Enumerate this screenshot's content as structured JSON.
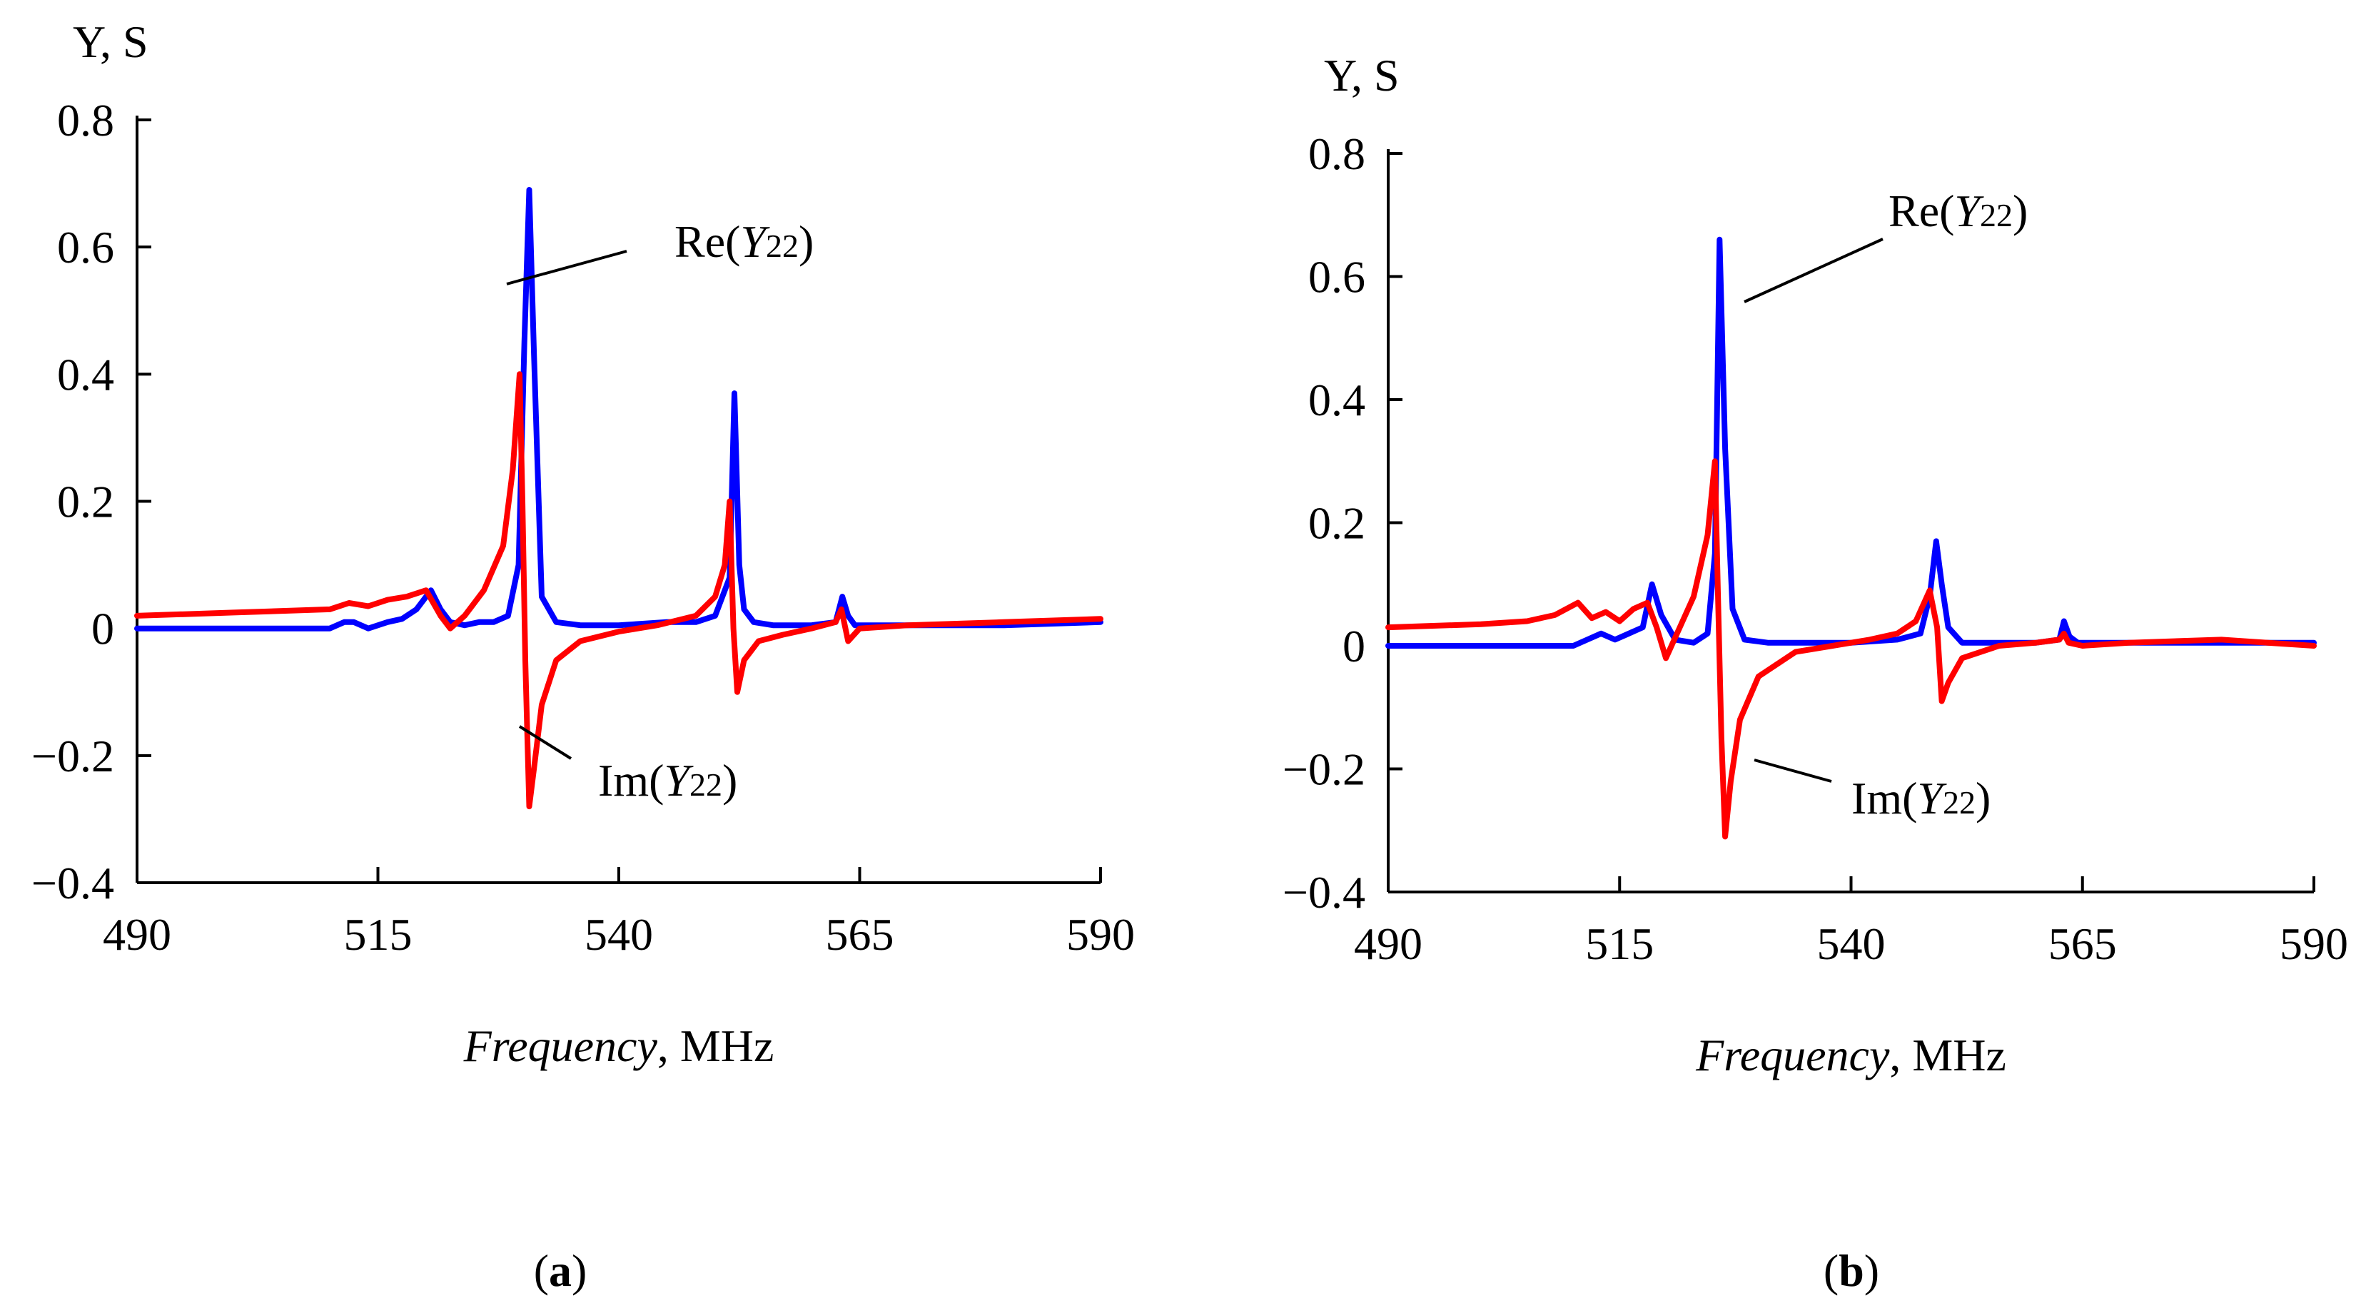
{
  "figure": {
    "panel_labels": [
      "a",
      "b"
    ]
  },
  "chart_data": [
    {
      "type": "line",
      "panel": "a",
      "title": "",
      "ylabel": "Y, S",
      "xlabel_italic": "Frequency",
      "xlabel_unit": ", MHz",
      "xlim": [
        490,
        590
      ],
      "ylim": [
        -0.4,
        0.8
      ],
      "xticks": [
        490,
        515,
        540,
        565,
        590
      ],
      "xtick_labels": [
        "490",
        "515",
        "540",
        "565",
        "590"
      ],
      "yticks": [
        0.8,
        0.6,
        0.4,
        0.2,
        0,
        -0.2,
        -0.4
      ],
      "ytick_labels": [
        "0.8",
        "0.6",
        "0.4",
        "0.2",
        "0",
        "−0.2",
        "−0.4"
      ],
      "grid": false,
      "series": [
        {
          "name": "Re(Y22)",
          "label_main": "Re(",
          "label_symbol": "Y",
          "label_sub": "22",
          "label_close": ")",
          "color": "#0000ff",
          "x": [
            490,
            500,
            510,
            511.5,
            512.5,
            514,
            516,
            517.5,
            519,
            520.5,
            521.5,
            522.5,
            524,
            525.5,
            527,
            528.5,
            529.6,
            530.2,
            530.7,
            531.2,
            532,
            533.5,
            536,
            540,
            545,
            548,
            550,
            551.5,
            552,
            552.5,
            553,
            554,
            556,
            560,
            562.5,
            563.2,
            563.8,
            564.5,
            566,
            570,
            580,
            590
          ],
          "y": [
            0.0,
            0.0,
            0.0,
            0.01,
            0.01,
            0.0,
            0.01,
            0.015,
            0.03,
            0.06,
            0.03,
            0.01,
            0.005,
            0.01,
            0.01,
            0.02,
            0.1,
            0.45,
            0.69,
            0.43,
            0.05,
            0.01,
            0.005,
            0.005,
            0.01,
            0.01,
            0.02,
            0.08,
            0.37,
            0.1,
            0.03,
            0.01,
            0.005,
            0.005,
            0.01,
            0.05,
            0.02,
            0.005,
            0.005,
            0.005,
            0.005,
            0.01
          ]
        },
        {
          "name": "Im(Y22)",
          "label_main": "Im(",
          "label_symbol": "Y",
          "label_sub": "22",
          "label_close": ")",
          "color": "#ff0000",
          "x": [
            490,
            500,
            510,
            512,
            514,
            516,
            518,
            520,
            521.5,
            522.5,
            524,
            526,
            528,
            529,
            529.7,
            530,
            530.3,
            530.7,
            531.2,
            532,
            533.5,
            536,
            540,
            544,
            548,
            550,
            551,
            551.5,
            551.9,
            552.3,
            553,
            554.5,
            557,
            560,
            562.5,
            563.1,
            563.8,
            565,
            570,
            580,
            590
          ],
          "y": [
            0.02,
            0.025,
            0.03,
            0.04,
            0.035,
            0.045,
            0.05,
            0.06,
            0.02,
            0.0,
            0.02,
            0.06,
            0.13,
            0.25,
            0.4,
            0.2,
            -0.05,
            -0.28,
            -0.22,
            -0.12,
            -0.05,
            -0.02,
            -0.005,
            0.005,
            0.02,
            0.05,
            0.1,
            0.2,
            0.0,
            -0.1,
            -0.05,
            -0.02,
            -0.01,
            0.0,
            0.01,
            0.03,
            -0.02,
            0.0,
            0.005,
            0.01,
            0.015
          ]
        }
      ],
      "annotations": [
        {
          "series": "Re(Y22)",
          "text": "Re(Y22)"
        },
        {
          "series": "Im(Y22)",
          "text": "Im(Y22)"
        }
      ]
    },
    {
      "type": "line",
      "panel": "b",
      "title": "",
      "ylabel": "Y, S",
      "xlabel_italic": "Frequency",
      "xlabel_unit": ", MHz",
      "xlim": [
        490,
        590
      ],
      "ylim": [
        -0.4,
        0.8
      ],
      "xticks": [
        490,
        515,
        540,
        565,
        590
      ],
      "xtick_labels": [
        "490",
        "515",
        "540",
        "565",
        "590"
      ],
      "yticks": [
        0.8,
        0.6,
        0.4,
        0.2,
        0,
        -0.2,
        -0.4
      ],
      "ytick_labels": [
        "0.8",
        "0.6",
        "0.4",
        "0.2",
        "0",
        "−0.2",
        "−0.4"
      ],
      "grid": false,
      "series": [
        {
          "name": "Re(Y22)",
          "label_main": "Re(",
          "label_symbol": "Y",
          "label_sub": "22",
          "label_close": ")",
          "color": "#0000ff",
          "x": [
            490,
            500,
            510,
            511.5,
            513,
            514.5,
            516,
            517.5,
            518.5,
            519.5,
            521,
            523,
            524.5,
            525.3,
            525.8,
            526.4,
            527.2,
            528.5,
            531,
            535,
            540,
            545,
            547.5,
            548.5,
            549.2,
            549.8,
            550.5,
            552,
            556,
            560,
            562.5,
            563,
            563.6,
            564.5,
            567,
            575,
            590
          ],
          "y": [
            0.0,
            0.0,
            0.0,
            0.01,
            0.02,
            0.01,
            0.02,
            0.03,
            0.1,
            0.05,
            0.01,
            0.005,
            0.02,
            0.15,
            0.66,
            0.32,
            0.06,
            0.01,
            0.005,
            0.005,
            0.005,
            0.01,
            0.02,
            0.08,
            0.17,
            0.1,
            0.03,
            0.005,
            0.005,
            0.005,
            0.01,
            0.04,
            0.015,
            0.005,
            0.005,
            0.005,
            0.005
          ]
        },
        {
          "name": "Im(Y22)",
          "label_main": "Im(",
          "label_symbol": "Y",
          "label_sub": "22",
          "label_close": ")",
          "color": "#ff0000",
          "x": [
            490,
            500,
            505,
            508,
            510.5,
            512,
            513.5,
            515,
            516.5,
            518,
            519,
            520,
            521.5,
            523,
            524.5,
            525.3,
            525.6,
            526,
            526.4,
            527,
            528,
            530,
            534,
            538,
            542,
            545,
            547,
            548.5,
            549.3,
            549.8,
            550.5,
            552,
            556,
            560,
            562.5,
            563,
            563.5,
            565,
            570,
            580,
            590
          ],
          "y": [
            0.03,
            0.035,
            0.04,
            0.05,
            0.07,
            0.045,
            0.055,
            0.04,
            0.06,
            0.07,
            0.03,
            -0.02,
            0.03,
            0.08,
            0.18,
            0.3,
            0.1,
            -0.15,
            -0.31,
            -0.22,
            -0.12,
            -0.05,
            -0.01,
            0.0,
            0.01,
            0.02,
            0.04,
            0.09,
            0.03,
            -0.09,
            -0.06,
            -0.02,
            0.0,
            0.005,
            0.01,
            0.02,
            0.005,
            0.0,
            0.005,
            0.01,
            0.0
          ]
        }
      ],
      "annotations": [
        {
          "series": "Re(Y22)",
          "text": "Re(Y22)"
        },
        {
          "series": "Im(Y22)",
          "text": "Im(Y22)"
        }
      ]
    }
  ]
}
